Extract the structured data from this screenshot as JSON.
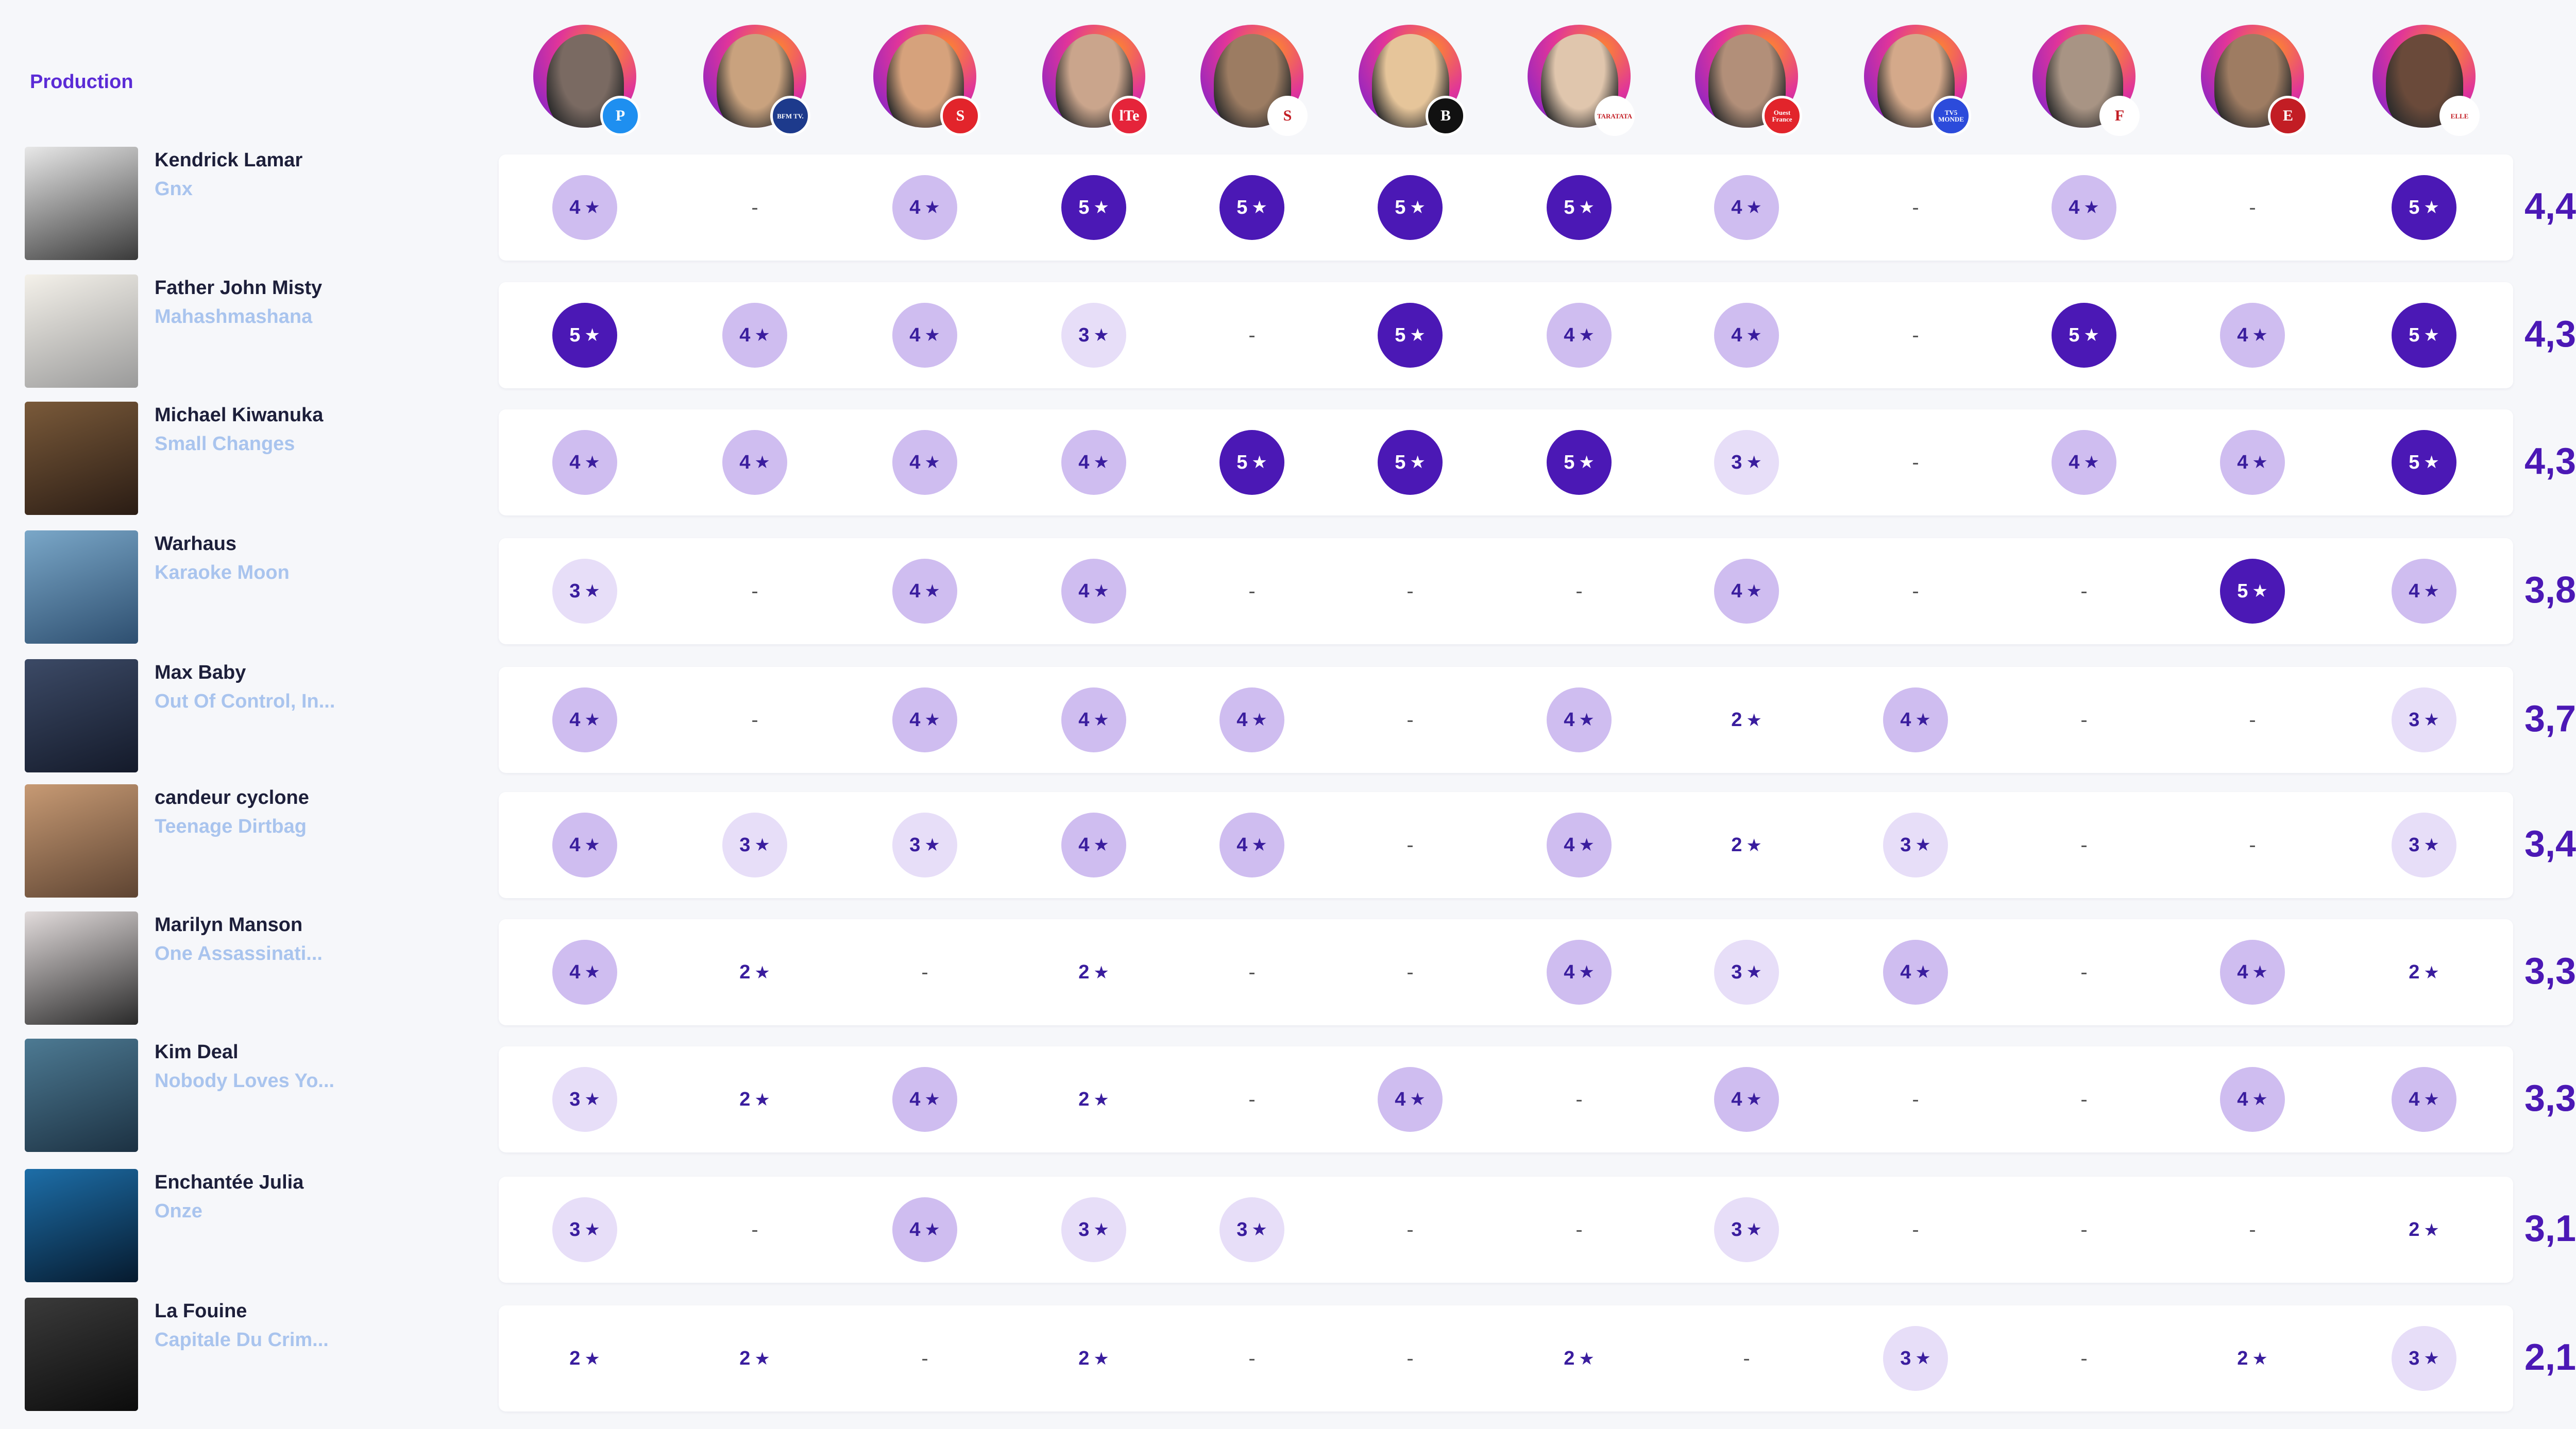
{
  "header": {
    "label": "Production"
  },
  "critics": [
    {
      "badge": "P",
      "badge_color": "#1e8ff0",
      "face_color": "#7a6a62"
    },
    {
      "badge": "BFM TV.",
      "badge_color": "#1d3a8c",
      "face_color": "#c9a27e"
    },
    {
      "badge": "S",
      "badge_color": "#e2242b",
      "face_color": "#d6a27c"
    },
    {
      "badge": "lTe",
      "badge_color": "#e5243a",
      "face_color": "#caa58c"
    },
    {
      "badge": "S",
      "badge_color": "#ffffff",
      "face_color": "#9c7c62"
    },
    {
      "badge": "B",
      "badge_color": "#111111",
      "face_color": "#e6c59a"
    },
    {
      "badge": "TARATATA",
      "badge_color": "#ffffff",
      "face_color": "#e0c6ad"
    },
    {
      "badge": "Ouest France",
      "badge_color": "#e2242b",
      "face_color": "#b28f79"
    },
    {
      "badge": "TV5 MONDE",
      "badge_color": "#2c4bdb",
      "face_color": "#d4a98a"
    },
    {
      "badge": "F",
      "badge_color": "#ffffff",
      "face_color": "#a89484"
    },
    {
      "badge": "E",
      "badge_color": "#c21d24",
      "face_color": "#9e7c62"
    },
    {
      "badge": "ELLE",
      "badge_color": "#ffffff",
      "face_color": "#6a4a3a"
    }
  ],
  "rows": [
    {
      "artist": "Kendrick Lamar",
      "title": "Gnx",
      "average": "4,4",
      "cover": [
        "#e8e8e8",
        "#3a3a3a"
      ],
      "ratings": [
        "4",
        "-",
        "4",
        "5",
        "5",
        "5",
        "5",
        "4",
        "-",
        "4",
        "-",
        "5"
      ]
    },
    {
      "artist": "Father John Misty",
      "title": "Mahashmashana",
      "average": "4,3",
      "cover": [
        "#f4f1ea",
        "#9a9a9a"
      ],
      "ratings": [
        "5",
        "4",
        "4",
        "3",
        "-",
        "5",
        "4",
        "4",
        "-",
        "5",
        "4",
        "5"
      ]
    },
    {
      "artist": "Michael Kiwanuka",
      "title": "Small Changes",
      "average": "4,3",
      "cover": [
        "#7a5a3a",
        "#2a1c14"
      ],
      "ratings": [
        "4",
        "4",
        "4",
        "4",
        "5",
        "5",
        "5",
        "3",
        "-",
        "4",
        "4",
        "5"
      ]
    },
    {
      "artist": "Warhaus",
      "title": "Karaoke Moon",
      "average": "3,8",
      "cover": [
        "#7aa7c8",
        "#2e4f70"
      ],
      "ratings": [
        "3",
        "-",
        "4",
        "4",
        "-",
        "-",
        "-",
        "4",
        "-",
        "-",
        "5",
        "4"
      ]
    },
    {
      "artist": "Max Baby",
      "title": "Out Of Control, In...",
      "average": "3,7",
      "cover": [
        "#3c4a66",
        "#141a2a"
      ],
      "ratings": [
        "4",
        "-",
        "4",
        "4",
        "4",
        "-",
        "4",
        "2",
        "4",
        "-",
        "-",
        "3"
      ]
    },
    {
      "artist": "candeur cyclone",
      "title": "Teenage Dirtbag",
      "average": "3,4",
      "cover": [
        "#c79a74",
        "#5e4432"
      ],
      "ratings": [
        "4",
        "3",
        "3",
        "4",
        "4",
        "-",
        "4",
        "2",
        "3",
        "-",
        "-",
        "3"
      ]
    },
    {
      "artist": "Marilyn Manson",
      "title": "One Assassinati...",
      "average": "3,3",
      "cover": [
        "#e2dcdc",
        "#2a2a2a"
      ],
      "ratings": [
        "4",
        "2",
        "-",
        "2",
        "-",
        "-",
        "4",
        "3",
        "4",
        "-",
        "4",
        "2"
      ]
    },
    {
      "artist": "Kim Deal",
      "title": "Nobody Loves Yo...",
      "average": "3,3",
      "cover": [
        "#4d7a93",
        "#1c3142"
      ],
      "ratings": [
        "3",
        "2",
        "4",
        "2",
        "-",
        "4",
        "-",
        "4",
        "-",
        "-",
        "4",
        "4"
      ]
    },
    {
      "artist": "Enchantée Julia",
      "title": "Onze",
      "average": "3,1",
      "cover": [
        "#1d6ea8",
        "#061a2e"
      ],
      "ratings": [
        "3",
        "-",
        "4",
        "3",
        "3",
        "-",
        "-",
        "3",
        "-",
        "-",
        "-",
        "2"
      ]
    },
    {
      "artist": "La Fouine",
      "title": "Capitale Du Crim...",
      "average": "2,1",
      "cover": [
        "#3a3a3a",
        "#0c0c0c"
      ],
      "ratings": [
        "2",
        "2",
        "-",
        "2",
        "-",
        "-",
        "2",
        "-",
        "3",
        "-",
        "2",
        "3"
      ]
    }
  ]
}
